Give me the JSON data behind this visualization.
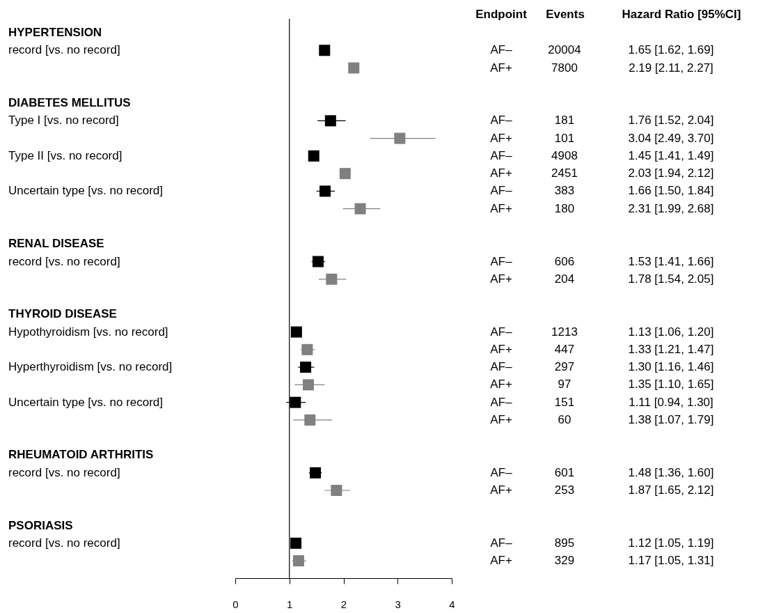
{
  "chart_data": {
    "type": "scatter",
    "orientation": "horizontal",
    "marker": "square",
    "grid": false,
    "categories": [
      "HYPERTENSION",
      "record [vs. no record]",
      null,
      null,
      "DIABETES MELLITUS",
      "Type I [vs. no record]",
      null,
      "Type II [vs. no record]",
      null,
      "Uncertain type [vs. no record]",
      null,
      null,
      "RENAL DISEASE",
      "record [vs. no record]",
      null,
      null,
      "THYROID DISEASE",
      "Hypothyroidism [vs. no record]",
      null,
      "Hyperthyroidism [vs. no record]",
      null,
      "Uncertain type [vs. no record]",
      null,
      null,
      "RHEUMATOID ARTHRITIS",
      "record [vs. no record]",
      null,
      null,
      "PSORIASIS",
      "record [vs. no record]",
      null
    ],
    "series": [
      {
        "name": "AF–",
        "color": "#000000",
        "values": [
          null,
          1.65,
          null,
          null,
          null,
          1.76,
          null,
          1.45,
          null,
          1.66,
          null,
          null,
          null,
          1.53,
          null,
          null,
          null,
          1.13,
          null,
          1.3,
          null,
          1.11,
          null,
          null,
          null,
          1.48,
          null,
          null,
          null,
          1.12,
          null
        ],
        "errors": [
          null,
          null,
          null,
          null,
          null,
          [
            1.52,
            2.04
          ],
          null,
          null,
          null,
          [
            1.5,
            1.84
          ],
          null,
          null,
          null,
          [
            1.41,
            1.66
          ],
          null,
          null,
          null,
          [
            1.06,
            1.2
          ],
          null,
          [
            1.16,
            1.46
          ],
          null,
          [
            0.94,
            1.3
          ],
          null,
          null,
          null,
          [
            1.36,
            1.6
          ],
          null,
          null,
          null,
          [
            1.05,
            1.19
          ],
          null
        ]
      },
      {
        "name": "AF+",
        "color": "#808080",
        "values": [
          null,
          null,
          2.19,
          null,
          null,
          null,
          3.04,
          null,
          2.03,
          null,
          2.31,
          null,
          null,
          null,
          1.78,
          null,
          null,
          null,
          1.33,
          null,
          1.35,
          null,
          1.38,
          null,
          null,
          null,
          1.87,
          null,
          null,
          null,
          1.17
        ],
        "errors": [
          null,
          null,
          [
            2.11,
            2.27
          ],
          null,
          null,
          null,
          [
            2.49,
            3.7
          ],
          null,
          [
            1.94,
            2.12
          ],
          null,
          [
            1.99,
            2.68
          ],
          null,
          null,
          null,
          [
            1.54,
            2.05
          ],
          null,
          null,
          null,
          [
            1.21,
            1.47
          ],
          null,
          [
            1.1,
            1.65
          ],
          null,
          [
            1.07,
            1.79
          ],
          null,
          null,
          null,
          [
            1.65,
            2.12
          ],
          null,
          null,
          null,
          [
            1.05,
            1.31
          ]
        ]
      }
    ],
    "xlim": [
      0,
      4
    ],
    "xticks": [
      0,
      1,
      2,
      3,
      4
    ],
    "ref_lines": [
      {
        "axis": "x",
        "value": 1,
        "color": "#000000"
      }
    ],
    "annotations": [
      "Endpoint",
      "Events",
      "Hazard Ratio [95%CI]",
      "20004",
      "7800",
      "181",
      "101",
      "4908",
      "2451",
      "383",
      "180",
      "606",
      "204",
      "1213",
      "447",
      "297",
      "97",
      "151",
      "60",
      "601",
      "253",
      "895",
      "329",
      "1.65 [1.62, 1.69]",
      "2.19 [2.11, 2.27]",
      "1.76 [1.52, 2.04]",
      "3.04 [2.49, 3.70]",
      "1.45 [1.41, 1.49]",
      "2.03 [1.94, 2.12]",
      "1.66 [1.50, 1.84]",
      "2.31 [1.99, 2.68]",
      "1.53 [1.41, 1.66]",
      "1.78 [1.54, 2.05]",
      "1.13 [1.06, 1.20]",
      "1.33 [1.21, 1.47]",
      "1.30 [1.16, 1.46]",
      "1.35 [1.10, 1.65]",
      "1.11 [0.94, 1.30]",
      "1.38 [1.07, 1.79]",
      "1.48 [1.36, 1.60]",
      "1.87 [1.65, 2.12]",
      "1.12 [1.05, 1.19]",
      "1.17 [1.05, 1.31]"
    ]
  }
}
